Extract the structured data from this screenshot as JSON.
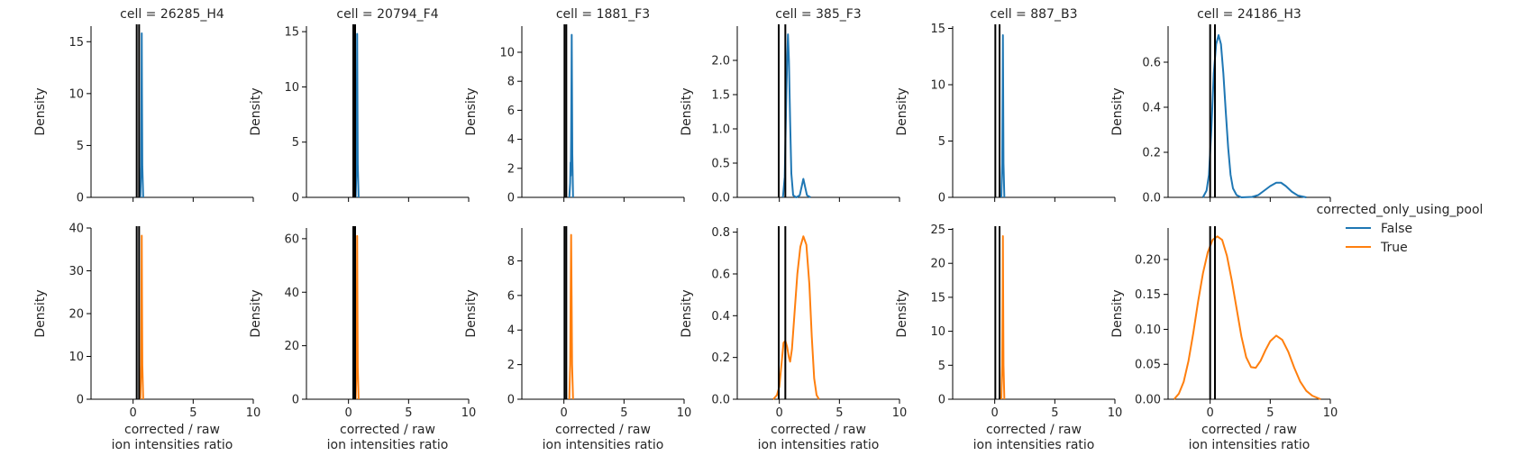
{
  "chart_data": {
    "type": "line",
    "kind": "kde-facet-grid",
    "xlabel_line1": "corrected / raw",
    "xlabel_line2": "ion intensities ratio",
    "ylabel": "Density",
    "xlim": [
      -3.5,
      10
    ],
    "xticks": [
      0,
      5,
      10
    ],
    "legend": {
      "title": "corrected_only_using_pool",
      "placement": "right",
      "entries": [
        {
          "label": "False",
          "color": "#1f77b4"
        },
        {
          "label": "True",
          "color": "#ff7f0e"
        }
      ]
    },
    "columns": [
      {
        "title": "cell = 26285_H4",
        "vlines": [
          0.3,
          0.5
        ],
        "rows": [
          {
            "series": "False",
            "ylim": [
              0,
              16.5
            ],
            "yticks": [
              0,
              5,
              10,
              15
            ],
            "curve": [
              [
                0.6,
                0
              ],
              [
                0.67,
                3
              ],
              [
                0.7,
                10
              ],
              [
                0.72,
                15.8
              ],
              [
                0.74,
                10
              ],
              [
                0.77,
                3
              ],
              [
                0.84,
                0
              ]
            ]
          },
          {
            "series": "True",
            "ylim": [
              0,
              40
            ],
            "yticks": [
              0,
              10,
              20,
              30,
              40
            ],
            "curve": [
              [
                0.6,
                0
              ],
              [
                0.67,
                8
              ],
              [
                0.7,
                25
              ],
              [
                0.72,
                38.2
              ],
              [
                0.74,
                25
              ],
              [
                0.77,
                8
              ],
              [
                0.84,
                0
              ]
            ]
          }
        ]
      },
      {
        "title": "cell = 20794_F4",
        "vlines": [
          0.4,
          0.55
        ],
        "rows": [
          {
            "series": "False",
            "ylim": [
              0,
              15.5
            ],
            "yticks": [
              0,
              5,
              10,
              15
            ],
            "curve": [
              [
                0.6,
                0
              ],
              [
                0.67,
                3
              ],
              [
                0.7,
                10
              ],
              [
                0.72,
                14.8
              ],
              [
                0.74,
                10
              ],
              [
                0.77,
                3
              ],
              [
                0.84,
                0
              ]
            ]
          },
          {
            "series": "True",
            "ylim": [
              0,
              64
            ],
            "yticks": [
              0,
              20,
              40,
              60
            ],
            "curve": [
              [
                0.6,
                0
              ],
              [
                0.67,
                12
              ],
              [
                0.7,
                40
              ],
              [
                0.72,
                61
              ],
              [
                0.74,
                40
              ],
              [
                0.77,
                12
              ],
              [
                0.84,
                0
              ]
            ]
          }
        ]
      },
      {
        "title": "cell = 1881_F3",
        "vlines": [
          0.05,
          0.2
        ],
        "rows": [
          {
            "series": "False",
            "ylim": [
              0,
              11.8
            ],
            "yticks": [
              0,
              2,
              4,
              6,
              8,
              10
            ],
            "curve": [
              [
                0.45,
                0
              ],
              [
                0.52,
                1
              ],
              [
                0.55,
                2.4
              ],
              [
                0.57,
                1.5
              ],
              [
                0.6,
                4
              ],
              [
                0.63,
                8
              ],
              [
                0.65,
                11.2
              ],
              [
                0.67,
                8
              ],
              [
                0.7,
                3
              ],
              [
                0.76,
                0
              ]
            ]
          },
          {
            "series": "True",
            "ylim": [
              0,
              9.9
            ],
            "yticks": [
              0,
              2,
              4,
              6,
              8
            ],
            "curve": [
              [
                0.45,
                0
              ],
              [
                0.52,
                2
              ],
              [
                0.56,
                6
              ],
              [
                0.6,
                9.5
              ],
              [
                0.64,
                6
              ],
              [
                0.68,
                2
              ],
              [
                0.76,
                0
              ]
            ]
          }
        ]
      },
      {
        "title": "cell = 385_F3",
        "vlines": [
          -0.05,
          0.5
        ],
        "rows": [
          {
            "series": "False",
            "ylim": [
              0,
              2.5
            ],
            "yticks": [
              0.0,
              0.5,
              1.0,
              1.5,
              2.0
            ],
            "curve": [
              [
                0.3,
                0
              ],
              [
                0.45,
                0.3
              ],
              [
                0.55,
                1.2
              ],
              [
                0.65,
                2.0
              ],
              [
                0.72,
                2.38
              ],
              [
                0.8,
                2.0
              ],
              [
                0.9,
                1.1
              ],
              [
                1.0,
                0.35
              ],
              [
                1.15,
                0.03
              ],
              [
                1.4,
                0
              ],
              [
                1.7,
                0.03
              ],
              [
                1.85,
                0.15
              ],
              [
                2.0,
                0.27
              ],
              [
                2.15,
                0.15
              ],
              [
                2.3,
                0.03
              ],
              [
                2.6,
                0
              ]
            ]
          },
          {
            "series": "True",
            "ylim": [
              0,
              0.82
            ],
            "yticks": [
              0.0,
              0.2,
              0.4,
              0.6,
              0.8
            ],
            "curve": [
              [
                -0.5,
                0
              ],
              [
                -0.2,
                0.02
              ],
              [
                0,
                0.06
              ],
              [
                0.2,
                0.18
              ],
              [
                0.35,
                0.27
              ],
              [
                0.5,
                0.28
              ],
              [
                0.65,
                0.25
              ],
              [
                0.8,
                0.2
              ],
              [
                0.9,
                0.18
              ],
              [
                1.05,
                0.24
              ],
              [
                1.25,
                0.4
              ],
              [
                1.5,
                0.6
              ],
              [
                1.75,
                0.73
              ],
              [
                2.0,
                0.78
              ],
              [
                2.25,
                0.74
              ],
              [
                2.5,
                0.55
              ],
              [
                2.7,
                0.3
              ],
              [
                2.9,
                0.1
              ],
              [
                3.1,
                0.02
              ],
              [
                3.3,
                0
              ]
            ]
          }
        ]
      },
      {
        "title": "cell = 887_B3",
        "vlines": [
          0.05,
          0.4
        ],
        "rows": [
          {
            "series": "False",
            "ylim": [
              0,
              15.2
            ],
            "yticks": [
              0,
              5,
              10,
              15
            ],
            "curve": [
              [
                0.55,
                0
              ],
              [
                0.62,
                3
              ],
              [
                0.66,
                10
              ],
              [
                0.68,
                14.4
              ],
              [
                0.7,
                10
              ],
              [
                0.73,
                3
              ],
              [
                0.8,
                0
              ]
            ]
          },
          {
            "series": "True",
            "ylim": [
              0,
              25.2
            ],
            "yticks": [
              0,
              5,
              10,
              15,
              20,
              25
            ],
            "curve": [
              [
                0.55,
                0
              ],
              [
                0.62,
                5
              ],
              [
                0.66,
                16
              ],
              [
                0.68,
                24
              ],
              [
                0.7,
                16
              ],
              [
                0.73,
                5
              ],
              [
                0.8,
                0
              ]
            ]
          }
        ]
      },
      {
        "title": "cell = 24186_H3",
        "vlines": [
          0.0,
          0.4
        ],
        "rows": [
          {
            "series": "False",
            "ylim": [
              0,
              0.76
            ],
            "yticks": [
              0.0,
              0.2,
              0.4,
              0.6
            ],
            "curve": [
              [
                -0.6,
                0
              ],
              [
                -0.3,
                0.03
              ],
              [
                -0.1,
                0.1
              ],
              [
                0.1,
                0.3
              ],
              [
                0.3,
                0.55
              ],
              [
                0.5,
                0.68
              ],
              [
                0.7,
                0.72
              ],
              [
                0.9,
                0.68
              ],
              [
                1.1,
                0.55
              ],
              [
                1.3,
                0.38
              ],
              [
                1.5,
                0.22
              ],
              [
                1.7,
                0.1
              ],
              [
                1.9,
                0.04
              ],
              [
                2.2,
                0.01
              ],
              [
                2.6,
                0
              ],
              [
                3.5,
                0.002
              ],
              [
                4.0,
                0.01
              ],
              [
                4.5,
                0.03
              ],
              [
                5.0,
                0.05
              ],
              [
                5.5,
                0.065
              ],
              [
                5.9,
                0.065
              ],
              [
                6.3,
                0.05
              ],
              [
                6.8,
                0.025
              ],
              [
                7.3,
                0.008
              ],
              [
                8.0,
                0
              ]
            ]
          },
          {
            "series": "True",
            "ylim": [
              0,
              0.245
            ],
            "yticks": [
              0.0,
              0.05,
              0.1,
              0.15,
              0.2
            ],
            "curve": [
              [
                -3.0,
                0
              ],
              [
                -2.6,
                0.008
              ],
              [
                -2.2,
                0.025
              ],
              [
                -1.8,
                0.055
              ],
              [
                -1.4,
                0.095
              ],
              [
                -1.0,
                0.14
              ],
              [
                -0.6,
                0.18
              ],
              [
                -0.2,
                0.21
              ],
              [
                0.2,
                0.228
              ],
              [
                0.6,
                0.233
              ],
              [
                1.0,
                0.228
              ],
              [
                1.4,
                0.205
              ],
              [
                1.8,
                0.17
              ],
              [
                2.2,
                0.13
              ],
              [
                2.6,
                0.09
              ],
              [
                3.0,
                0.06
              ],
              [
                3.4,
                0.046
              ],
              [
                3.8,
                0.045
              ],
              [
                4.2,
                0.055
              ],
              [
                4.6,
                0.07
              ],
              [
                5.0,
                0.083
              ],
              [
                5.5,
                0.091
              ],
              [
                6.0,
                0.085
              ],
              [
                6.5,
                0.068
              ],
              [
                7.0,
                0.045
              ],
              [
                7.5,
                0.025
              ],
              [
                8.0,
                0.012
              ],
              [
                8.5,
                0.005
              ],
              [
                9.2,
                0
              ]
            ]
          }
        ]
      }
    ]
  }
}
